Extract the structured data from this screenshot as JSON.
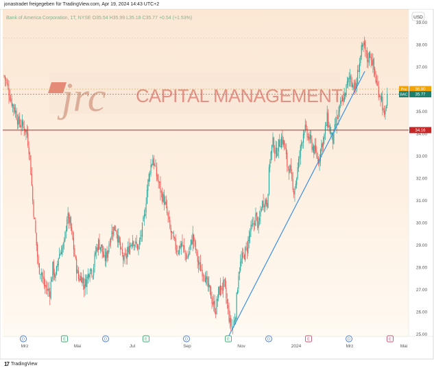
{
  "header": {
    "published_line": "jonastradet freigegeben für TradingView.com, Apr 19, 2024 14:43 UTC+2"
  },
  "chart_data": {
    "type": "candlestick",
    "symbol_line": "Bank of America Corporation, 1T, NYSE  O35.54  H35.99  L35.18  C35.77  +0.54 (+1.53%)",
    "currency_label": "USD",
    "y_ticks": [
      "39.00",
      "38.00",
      "37.00",
      "36.00",
      "35.00",
      "34.00",
      "33.00",
      "32.00",
      "31.00",
      "30.00",
      "29.00",
      "28.00",
      "27.00",
      "26.00",
      "25.00"
    ],
    "ylim": [
      24.9,
      39.6
    ],
    "x_labels": [
      "Mrz",
      "Mai",
      "Jul",
      "Sep",
      "Nov",
      "2024",
      "Mrz",
      "Mai"
    ],
    "price_labels": [
      {
        "name": "Pre",
        "value": "36.00"
      },
      {
        "name": "BAC",
        "value": "35.77"
      },
      {
        "name": "",
        "value": "34.16"
      }
    ],
    "horizontal_line": 34.16,
    "pre_market": 36.0,
    "last_close": 35.77,
    "event_markers": [
      "D",
      "E",
      "D",
      "E",
      "D",
      "E",
      "D",
      "E",
      "D",
      "E"
    ],
    "watermark": {
      "logo": "jrc",
      "text": "CAPITAL MANAGEMENT"
    },
    "trendline": {
      "from": [
        235.5,
        24.9
      ],
      "to": [
        378.5,
        36.8
      ]
    },
    "series_close_path": [
      [
        0,
        36.6
      ],
      [
        3,
        36.2
      ],
      [
        6,
        35.7
      ],
      [
        9,
        35.3
      ],
      [
        12,
        35.0
      ],
      [
        15,
        34.5
      ],
      [
        18,
        34.4
      ],
      [
        21,
        34.3
      ],
      [
        24,
        34.0
      ],
      [
        27,
        33.0
      ],
      [
        30,
        31.0
      ],
      [
        33,
        29.5
      ],
      [
        36,
        28.0
      ],
      [
        39,
        27.8
      ],
      [
        42,
        27.2
      ],
      [
        45,
        27.0
      ],
      [
        48,
        26.9
      ],
      [
        51,
        28.0
      ],
      [
        54,
        27.5
      ],
      [
        57,
        28.5
      ],
      [
        60,
        28.8
      ],
      [
        63,
        29.0
      ],
      [
        66,
        30.3
      ],
      [
        69,
        30.0
      ],
      [
        72,
        29.2
      ],
      [
        75,
        28.2
      ],
      [
        78,
        27.5
      ],
      [
        81,
        27.6
      ],
      [
        84,
        27.2
      ],
      [
        87,
        27.5
      ],
      [
        90,
        28.0
      ],
      [
        93,
        27.8
      ],
      [
        96,
        28.7
      ],
      [
        99,
        29.1
      ],
      [
        102,
        28.9
      ],
      [
        105,
        28.3
      ],
      [
        108,
        28.6
      ],
      [
        111,
        29.3
      ],
      [
        114,
        29.7
      ],
      [
        117,
        29.8
      ],
      [
        120,
        29.2
      ],
      [
        123,
        28.6
      ],
      [
        126,
        28.3
      ],
      [
        129,
        28.6
      ],
      [
        132,
        29.0
      ],
      [
        135,
        29.3
      ],
      [
        138,
        29.0
      ],
      [
        141,
        28.9
      ],
      [
        144,
        29.5
      ],
      [
        147,
        30.2
      ],
      [
        150,
        31.5
      ],
      [
        153,
        32.4
      ],
      [
        156,
        32.9
      ],
      [
        159,
        32.3
      ],
      [
        162,
        31.8
      ],
      [
        165,
        31.3
      ],
      [
        168,
        31.0
      ],
      [
        171,
        30.4
      ],
      [
        174,
        29.7
      ],
      [
        177,
        29.3
      ],
      [
        180,
        28.9
      ],
      [
        183,
        28.8
      ],
      [
        186,
        29.1
      ],
      [
        189,
        28.7
      ],
      [
        192,
        28.4
      ],
      [
        195,
        28.9
      ],
      [
        198,
        29.4
      ],
      [
        201,
        28.8
      ],
      [
        204,
        28.1
      ],
      [
        207,
        27.9
      ],
      [
        210,
        27.8
      ],
      [
        213,
        27.2
      ],
      [
        216,
        26.9
      ],
      [
        219,
        26.4
      ],
      [
        222,
        26.1
      ],
      [
        225,
        26.9
      ],
      [
        228,
        27.1
      ],
      [
        231,
        27.2
      ],
      [
        234,
        26.3
      ],
      [
        237,
        25.5
      ],
      [
        240,
        25.3
      ],
      [
        243,
        26.0
      ],
      [
        246,
        27.8
      ],
      [
        249,
        28.3
      ],
      [
        252,
        28.6
      ],
      [
        255,
        28.9
      ],
      [
        258,
        29.6
      ],
      [
        261,
        29.8
      ],
      [
        264,
        30.3
      ],
      [
        267,
        29.8
      ],
      [
        270,
        30.8
      ],
      [
        273,
        31.0
      ],
      [
        276,
        30.9
      ],
      [
        279,
        32.9
      ],
      [
        282,
        33.6
      ],
      [
        285,
        33.1
      ],
      [
        288,
        33.5
      ],
      [
        291,
        33.8
      ],
      [
        294,
        33.5
      ],
      [
        297,
        32.6
      ],
      [
        300,
        32.4
      ],
      [
        303,
        31.4
      ],
      [
        306,
        31.8
      ],
      [
        309,
        32.7
      ],
      [
        312,
        33.6
      ],
      [
        315,
        34.3
      ],
      [
        318,
        33.9
      ],
      [
        321,
        33.7
      ],
      [
        324,
        33.4
      ],
      [
        327,
        33.1
      ],
      [
        330,
        32.8
      ],
      [
        333,
        33.5
      ],
      [
        336,
        33.9
      ],
      [
        339,
        34.7
      ],
      [
        342,
        34.1
      ],
      [
        345,
        33.7
      ],
      [
        348,
        34.4
      ],
      [
        351,
        34.9
      ],
      [
        354,
        35.4
      ],
      [
        357,
        35.7
      ],
      [
        360,
        36.2
      ],
      [
        363,
        36.6
      ],
      [
        366,
        36.2
      ],
      [
        369,
        36.0
      ],
      [
        372,
        37.0
      ],
      [
        375,
        37.7
      ],
      [
        378,
        37.9
      ],
      [
        381,
        37.3
      ],
      [
        384,
        37.6
      ],
      [
        387,
        37.1
      ],
      [
        390,
        36.4
      ],
      [
        393,
        35.9
      ],
      [
        396,
        35.6
      ],
      [
        399,
        34.6
      ],
      [
        402,
        35.77
      ]
    ]
  }
}
